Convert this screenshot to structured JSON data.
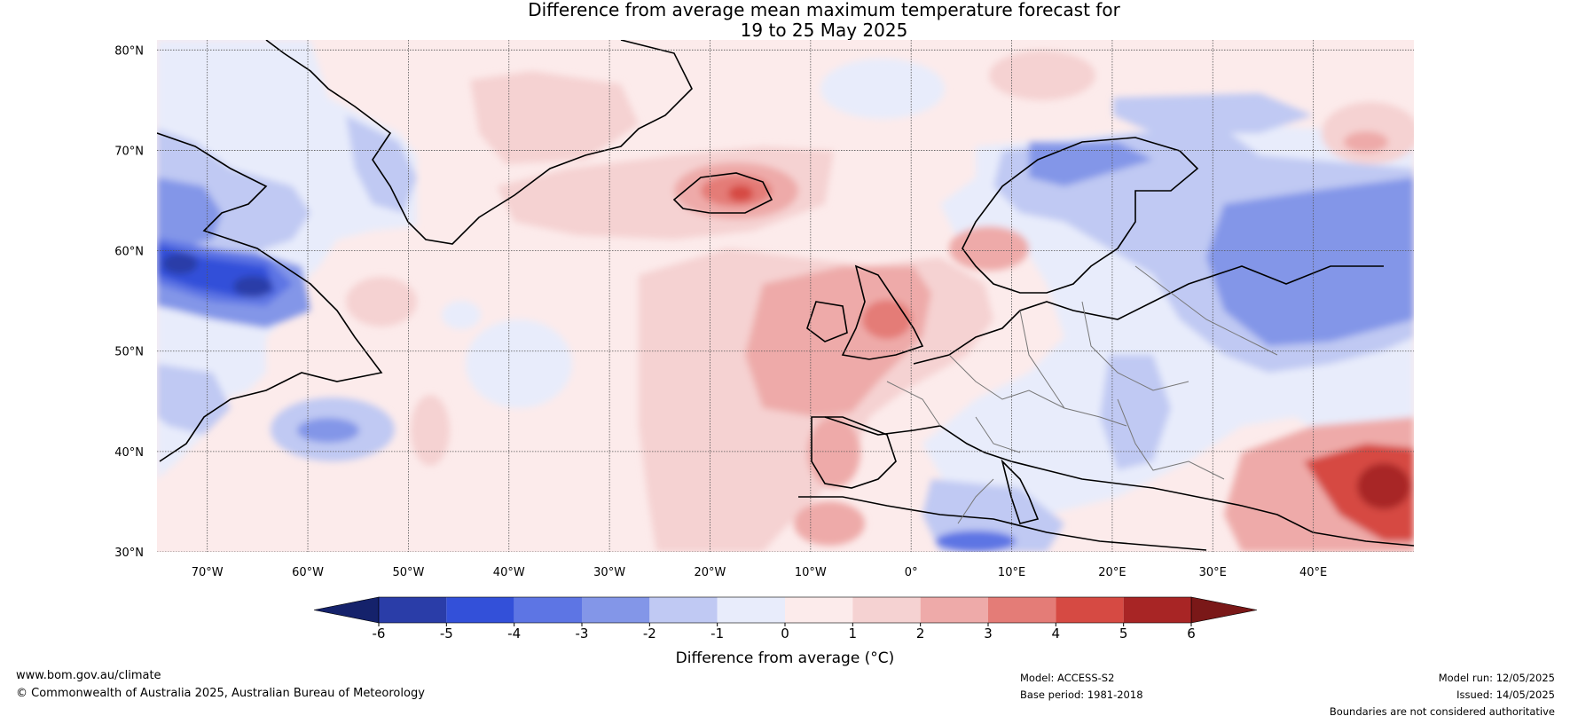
{
  "title": {
    "line1": "Difference from average mean maximum temperature forecast for",
    "line2": "19 to 25 May 2025"
  },
  "axes": {
    "lat_labels": [
      "80°N",
      "70°N",
      "60°N",
      "50°N",
      "40°N",
      "30°N"
    ],
    "lon_labels": [
      "70°W",
      "60°W",
      "50°W",
      "40°W",
      "30°W",
      "20°W",
      "10°W",
      "0°",
      "10°E",
      "20°E",
      "30°E",
      "40°E"
    ]
  },
  "colorbar": {
    "label": "Difference from average (°C)",
    "ticks": [
      "-6",
      "-5",
      "-4",
      "-3",
      "-2",
      "-1",
      "0",
      "1",
      "2",
      "3",
      "4",
      "5",
      "6"
    ],
    "colors": [
      "#15226b",
      "#2a3da8",
      "#3350d9",
      "#5d75e4",
      "#8396e8",
      "#c0c9f3",
      "#e8ecfb",
      "#fcebeb",
      "#f5d2d2",
      "#eeaaa9",
      "#e47c77",
      "#d64a43",
      "#a82525",
      "#7a1818"
    ]
  },
  "footer": {
    "website": "www.bom.gov.au/climate",
    "copyright": "© Commonwealth of Australia 2025, Australian Bureau of Meteorology",
    "model": "Model: ACCESS-S2",
    "base_period": "Base period: 1981-2018",
    "model_run": "Model run: 12/05/2025",
    "issued": "Issued: 14/05/2025",
    "disclaimer": "Boundaries are not considered authoritative"
  }
}
